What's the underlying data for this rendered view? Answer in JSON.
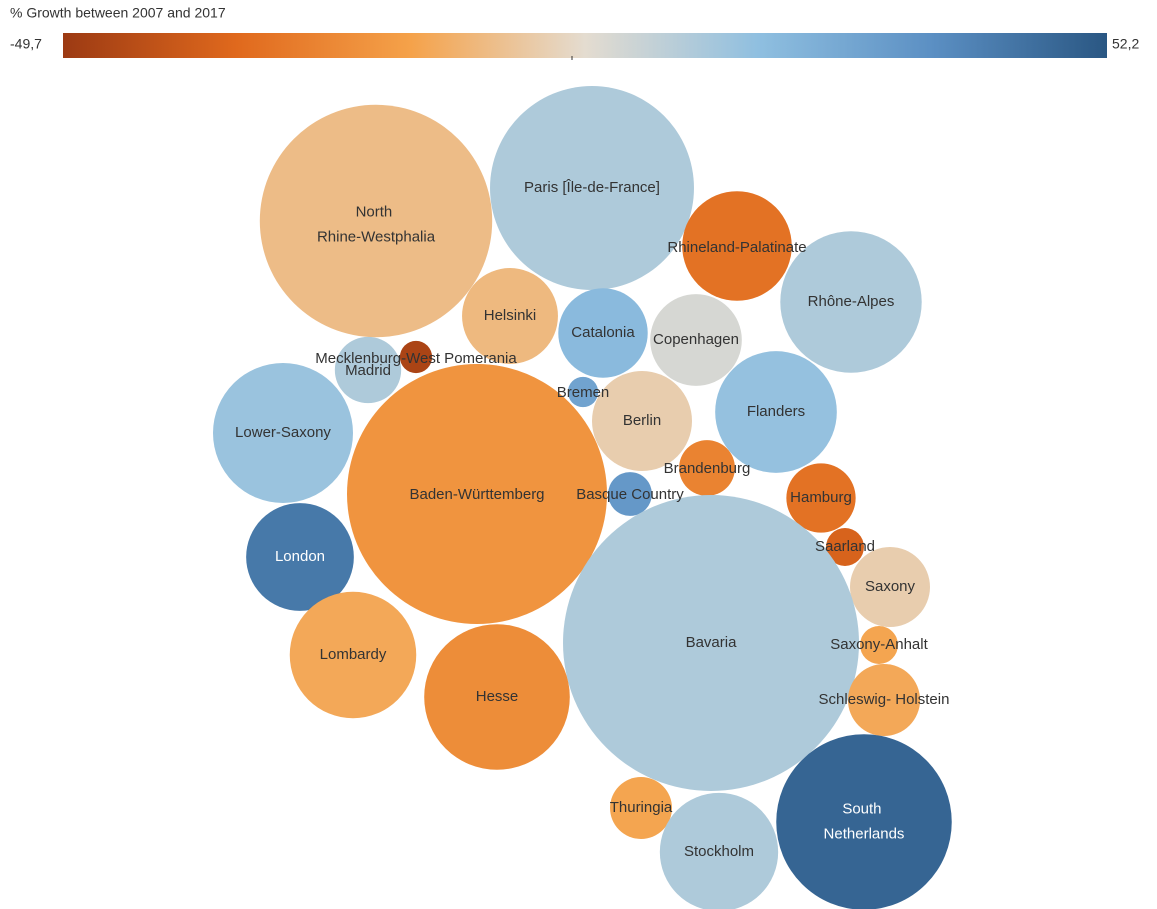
{
  "chart_data": {
    "type": "packed-bubble",
    "legend_title": "% Growth between 2007 and 2017",
    "color_range": [
      {
        "value": -49.7,
        "label": "-49,7"
      },
      {
        "value": 52.2,
        "label": "52,2"
      }
    ],
    "color_scale": [
      "#9c3a13",
      "#e0691d",
      "#f5a24a",
      "#e4dcd0",
      "#8fbfe0",
      "#5b8fc3",
      "#2a5783"
    ],
    "bubbles": [
      {
        "name": "North\nRhine-Westphalia",
        "size": 135,
        "growth": -8
      },
      {
        "name": "Paris [Île-de-France]",
        "size": 104,
        "growth": 12
      },
      {
        "name": "Rhineland-Palatinate",
        "size": 30,
        "growth": -30
      },
      {
        "name": "Rhône-Alpes",
        "size": 50,
        "growth": 12
      },
      {
        "name": "Helsinki",
        "size": 23,
        "growth": -9
      },
      {
        "name": "Catalonia",
        "size": 20,
        "growth": 20
      },
      {
        "name": "Copenhagen",
        "size": 21,
        "growth": 4
      },
      {
        "name": "Madrid",
        "size": 11,
        "growth": 12
      },
      {
        "name": "Mecklenburg-West Pomerania",
        "size": 2.6,
        "growth": -46
      },
      {
        "name": "Lower-Saxony",
        "size": 49,
        "growth": 16
      },
      {
        "name": "Baden-Württemberg",
        "size": 169,
        "growth": -20
      },
      {
        "name": "Bremen",
        "size": 2.3,
        "growth": 28
      },
      {
        "name": "Berlin",
        "size": 25,
        "growth": -3
      },
      {
        "name": "Flanders",
        "size": 37,
        "growth": 17
      },
      {
        "name": "Brandenburg",
        "size": 7.8,
        "growth": -25
      },
      {
        "name": "Basque Country",
        "size": 4.8,
        "growth": 32
      },
      {
        "name": "Hamburg",
        "size": 12,
        "growth": -30
      },
      {
        "name": "Saarland",
        "size": 3.6,
        "growth": -35
      },
      {
        "name": "London",
        "size": 29,
        "growth": 42
      },
      {
        "name": "Saxony",
        "size": 16,
        "growth": -3
      },
      {
        "name": "Bavaria",
        "size": 219,
        "growth": 12
      },
      {
        "name": "Saxony-Anhalt",
        "size": 3.6,
        "growth": -15
      },
      {
        "name": "Lombardy",
        "size": 40,
        "growth": -14
      },
      {
        "name": "Hesse",
        "size": 53,
        "growth": -22
      },
      {
        "name": "Schleswig- Holstein",
        "size": 13,
        "growth": -14
      },
      {
        "name": "Thuringia",
        "size": 9.6,
        "growth": -15
      },
      {
        "name": "Stockholm",
        "size": 35,
        "growth": 12
      },
      {
        "name": "South\nNetherlands",
        "size": 77,
        "growth": 48
      }
    ]
  }
}
